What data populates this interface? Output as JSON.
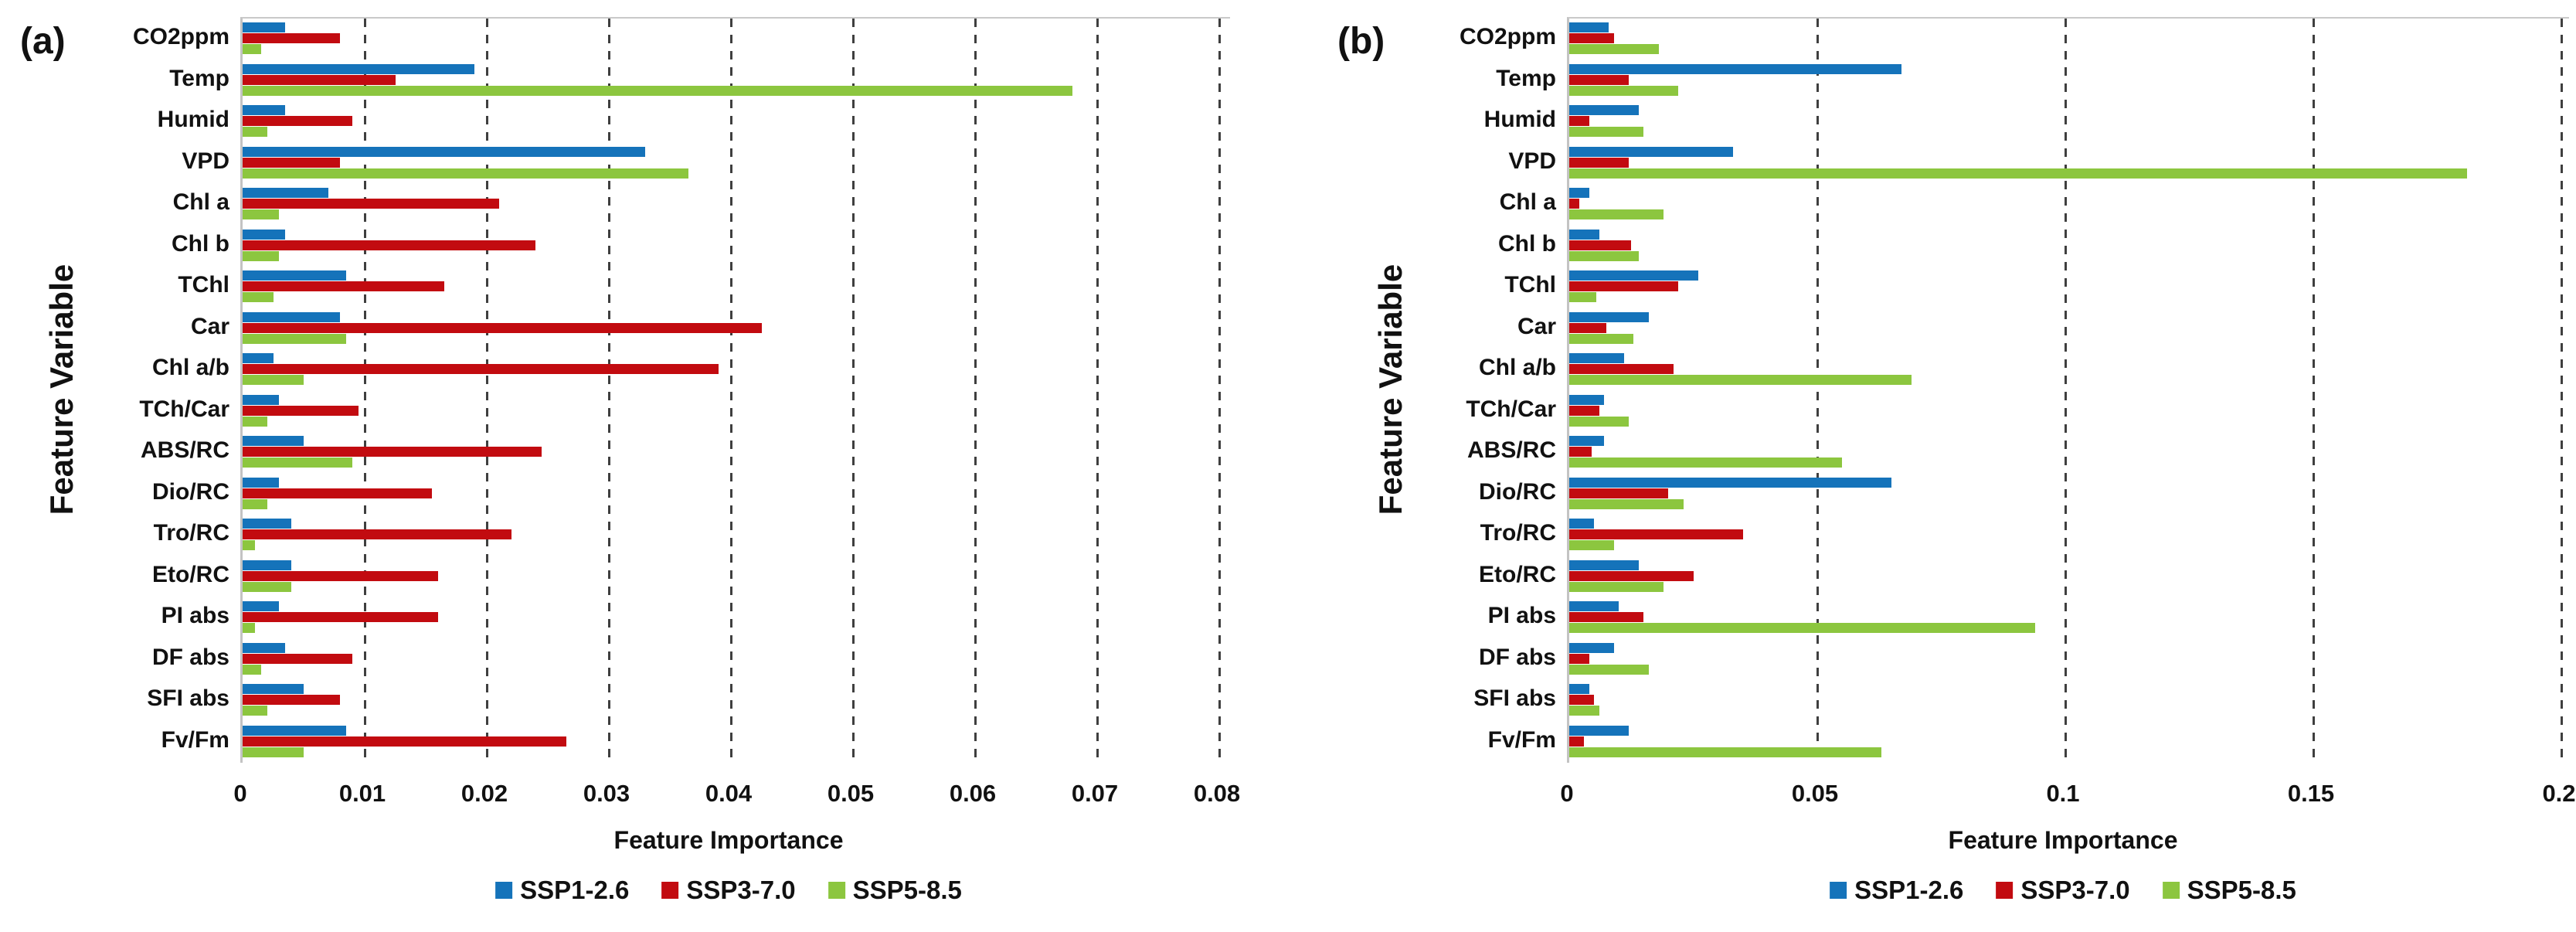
{
  "figure_label_a": "(a)",
  "figure_label_b": "(b)",
  "chart_data": [
    {
      "type": "bar",
      "orientation": "horizontal",
      "panel_label": "(a)",
      "xlabel": "Feature Importance",
      "ylabel": "Feature Variable",
      "xlim": [
        0,
        0.08
      ],
      "xticks": [
        0,
        0.01,
        0.02,
        0.03,
        0.04,
        0.05,
        0.06,
        0.07,
        0.08
      ],
      "xtick_labels": [
        "0",
        "0.01",
        "0.02",
        "0.03",
        "0.04",
        "0.05",
        "0.06",
        "0.07",
        "0.08"
      ],
      "gridline_values": [
        0.01,
        0.02,
        0.03,
        0.04,
        0.05,
        0.06,
        0.07,
        0.08
      ],
      "grid_style": "vertical-dashed",
      "legend_position": "bottom",
      "categories": [
        "CO2ppm",
        "Temp",
        "Humid",
        "VPD",
        "Chl a",
        "Chl b",
        "TChl",
        "Car",
        "Chl a/b",
        "TCh/Car",
        "ABS/RC",
        "Dio/RC",
        "Tro/RC",
        "Eto/RC",
        "PI abs",
        "DF abs",
        "SFI abs",
        "Fv/Fm"
      ],
      "series": [
        {
          "name": "SSP1-2.6",
          "color": "#1573BA",
          "values": [
            0.0035,
            0.019,
            0.0035,
            0.033,
            0.007,
            0.0035,
            0.0085,
            0.008,
            0.0025,
            0.003,
            0.005,
            0.003,
            0.004,
            0.004,
            0.003,
            0.0035,
            0.005,
            0.0085
          ]
        },
        {
          "name": "SSP3-7.0",
          "color": "#C20B10",
          "values": [
            0.008,
            0.0125,
            0.009,
            0.008,
            0.021,
            0.024,
            0.0165,
            0.0425,
            0.039,
            0.0095,
            0.0245,
            0.0155,
            0.022,
            0.016,
            0.016,
            0.009,
            0.008,
            0.0265
          ]
        },
        {
          "name": "SSP5-8.5",
          "color": "#8CC63F",
          "values": [
            0.0015,
            0.068,
            0.002,
            0.0365,
            0.003,
            0.003,
            0.0025,
            0.0085,
            0.005,
            0.002,
            0.009,
            0.002,
            0.001,
            0.004,
            0.001,
            0.0015,
            0.002,
            0.005
          ]
        }
      ]
    },
    {
      "type": "bar",
      "orientation": "horizontal",
      "panel_label": "(b)",
      "xlabel": "Feature Importance",
      "ylabel": "Feature Variable",
      "xlim": [
        0,
        0.2
      ],
      "xticks": [
        0,
        0.05,
        0.1,
        0.15,
        0.2
      ],
      "xtick_labels": [
        "0",
        "0.05",
        "0.1",
        "0.15",
        "0.2"
      ],
      "gridline_values": [
        0.05,
        0.1,
        0.15,
        0.2
      ],
      "grid_style": "vertical-dashed",
      "legend_position": "bottom",
      "categories": [
        "CO2ppm",
        "Temp",
        "Humid",
        "VPD",
        "Chl a",
        "Chl b",
        "TChl",
        "Car",
        "Chl a/b",
        "TCh/Car",
        "ABS/RC",
        "Dio/RC",
        "Tro/RC",
        "Eto/RC",
        "PI abs",
        "DF abs",
        "SFI abs",
        "Fv/Fm"
      ],
      "series": [
        {
          "name": "SSP1-2.6",
          "color": "#1573BA",
          "values": [
            0.008,
            0.067,
            0.014,
            0.033,
            0.004,
            0.006,
            0.026,
            0.016,
            0.011,
            0.007,
            0.007,
            0.065,
            0.005,
            0.014,
            0.01,
            0.009,
            0.004,
            0.012
          ]
        },
        {
          "name": "SSP3-7.0",
          "color": "#C20B10",
          "values": [
            0.009,
            0.012,
            0.004,
            0.012,
            0.002,
            0.0125,
            0.022,
            0.0075,
            0.021,
            0.006,
            0.0045,
            0.02,
            0.035,
            0.025,
            0.015,
            0.004,
            0.005,
            0.003
          ]
        },
        {
          "name": "SSP5-8.5",
          "color": "#8CC63F",
          "values": [
            0.018,
            0.022,
            0.015,
            0.181,
            0.019,
            0.014,
            0.0055,
            0.013,
            0.069,
            0.012,
            0.055,
            0.023,
            0.009,
            0.019,
            0.094,
            0.016,
            0.006,
            0.063
          ]
        }
      ]
    }
  ]
}
